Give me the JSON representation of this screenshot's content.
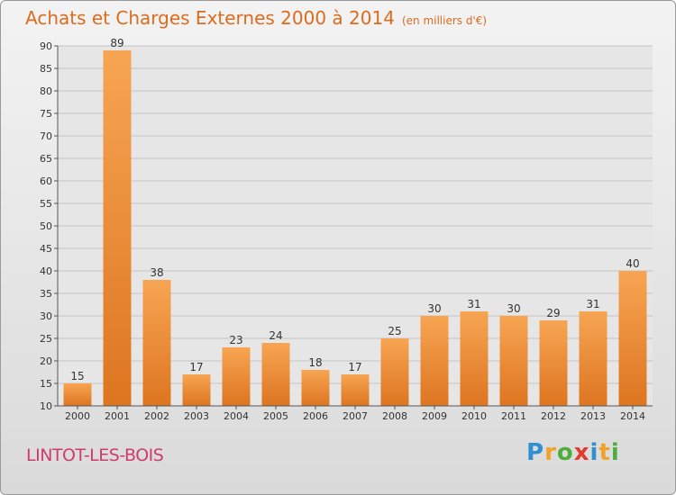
{
  "header": {
    "title": "Achats et Charges Externes 2000 à 2014",
    "unit": "(en milliers d'€)"
  },
  "footer": {
    "town": "LINTOT-LES-BOIS",
    "brand_letters": [
      "P",
      "r",
      "o",
      "x",
      "i",
      "t",
      "i"
    ],
    "brand_colors": [
      "#2f8fd0",
      "#f2a22a",
      "#4fae3b",
      "#e23b2e",
      "#2f8fd0",
      "#f2a22a",
      "#4fae3b"
    ]
  },
  "chart_data": {
    "type": "bar",
    "categories": [
      "2000",
      "2001",
      "2002",
      "2003",
      "2004",
      "2005",
      "2006",
      "2007",
      "2008",
      "2009",
      "2010",
      "2011",
      "2012",
      "2013",
      "2014"
    ],
    "values": [
      15,
      89,
      38,
      17,
      23,
      24,
      18,
      17,
      25,
      30,
      31,
      30,
      29,
      31,
      40
    ],
    "ylim": [
      10,
      90
    ],
    "yticks": [
      10,
      15,
      20,
      25,
      30,
      35,
      40,
      45,
      50,
      55,
      60,
      65,
      70,
      75,
      80,
      85,
      90
    ],
    "grid": true,
    "bar_color": "#f0922e"
  }
}
